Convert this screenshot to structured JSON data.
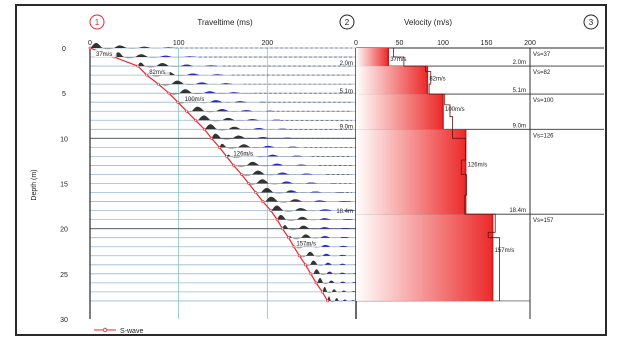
{
  "panel_markers": [
    "1",
    "2",
    "3"
  ],
  "legend": {
    "label": "S-wave",
    "color": "#e8262a"
  },
  "colors": {
    "frame": "#2a2a2a",
    "grid": "#9db7d8",
    "vgrid": "#7fc4c4",
    "trace_blue": "#2a2ad6",
    "trace_black": "#111111",
    "curve": "#e8262a",
    "velocity_line": "#c81e1e",
    "velocity_fill": "#ec2a2a"
  },
  "chart_data": [
    {
      "type": "scatter",
      "title": "Traveltime (ms)",
      "xlabel": "",
      "ylabel": "Depth (m)",
      "xlim": [
        0,
        300
      ],
      "ylim": [
        0,
        30
      ],
      "x_ticks": [
        "0",
        "100",
        "200"
      ],
      "y_ticks": [
        "0",
        "5",
        "10",
        "15",
        "20",
        "25",
        "30"
      ],
      "trace_depths": [
        0,
        1,
        2,
        3,
        4,
        5,
        6,
        7,
        8,
        9,
        10,
        11,
        12,
        13,
        14,
        15,
        16,
        17,
        18,
        19,
        20,
        21,
        22,
        23,
        24,
        25,
        26,
        27,
        28
      ],
      "series": [
        {
          "name": "S-wave",
          "points": [
            [
              0,
              0
            ],
            [
              27,
              1
            ],
            [
              54,
              2
            ],
            [
              64,
              3
            ],
            [
              77,
              4
            ],
            [
              89,
              5
            ],
            [
              99,
              6
            ],
            [
              109,
              7
            ],
            [
              119,
              8
            ],
            [
              129,
              9
            ],
            [
              137,
              10
            ],
            [
              146,
              11
            ],
            [
              154,
              12
            ],
            [
              162,
              13
            ],
            [
              171,
              14
            ],
            [
              179,
              15
            ],
            [
              187,
              16
            ],
            [
              195,
              17
            ],
            [
              204,
              18
            ],
            [
              211,
              19
            ],
            [
              217,
              20
            ],
            [
              224,
              21
            ],
            [
              230,
              22
            ],
            [
              236,
              23
            ],
            [
              243,
              24
            ],
            [
              249,
              25
            ],
            [
              255,
              26
            ],
            [
              262,
              27
            ],
            [
              268,
              28
            ]
          ]
        }
      ],
      "annotations": [
        {
          "text": "37m/s",
          "x": 0,
          "y": 1
        },
        {
          "text": "82m/s",
          "x": 60,
          "y": 3
        },
        {
          "text": "100m/s",
          "x": 100,
          "y": 6
        },
        {
          "text": "126m/s",
          "x": 155,
          "y": 12
        },
        {
          "text": "157m/s",
          "x": 226,
          "y": 22
        },
        {
          "text": "2.0m",
          "x": 300,
          "y": 2
        },
        {
          "text": "5.1m",
          "x": 300,
          "y": 5.1
        },
        {
          "text": "9.0m",
          "x": 300,
          "y": 9
        },
        {
          "text": "18.4m",
          "x": 300,
          "y": 18.4
        }
      ]
    },
    {
      "type": "line",
      "title": "Velocity (m/s)",
      "xlabel": "",
      "ylabel": "",
      "xlim": [
        0,
        200
      ],
      "ylim": [
        0,
        30
      ],
      "x_ticks": [
        "0",
        "50",
        "100",
        "150",
        "200"
      ],
      "layers": [
        {
          "top": 0,
          "bottom": 2.0,
          "velocity": 37,
          "label": "37m/s",
          "boundary_label": "2.0m",
          "vs_label": "Vs=37"
        },
        {
          "top": 2.0,
          "bottom": 5.1,
          "velocity": 82,
          "label": "82m/s",
          "boundary_label": "5.1m",
          "vs_label": "Vs=82"
        },
        {
          "top": 5.1,
          "bottom": 9.0,
          "velocity": 100,
          "label": "100m/s",
          "boundary_label": "9.0m",
          "vs_label": "Vs=100"
        },
        {
          "top": 9.0,
          "bottom": 18.4,
          "velocity": 126,
          "label": "126m/s",
          "boundary_label": "18.4m",
          "vs_label": "Vs=126"
        },
        {
          "top": 18.4,
          "bottom": 28,
          "velocity": 157,
          "label": "157m/s",
          "boundary_label": "",
          "vs_label": "Vs=157"
        }
      ],
      "interval_velocity": [
        [
          43,
          0
        ],
        [
          43,
          1
        ],
        [
          55,
          1
        ],
        [
          55,
          2
        ],
        [
          80,
          2
        ],
        [
          80,
          2.6
        ],
        [
          86,
          2.6
        ],
        [
          86,
          4
        ],
        [
          84,
          4
        ],
        [
          84,
          5.1
        ],
        [
          102,
          5.1
        ],
        [
          102,
          6.3
        ],
        [
          108,
          6.3
        ],
        [
          108,
          7.6
        ],
        [
          111,
          7.6
        ],
        [
          111,
          9
        ],
        [
          111,
          9
        ],
        [
          111,
          10
        ],
        [
          126,
          10
        ],
        [
          126,
          12.4
        ],
        [
          121,
          12.4
        ],
        [
          121,
          14
        ],
        [
          127,
          14
        ],
        [
          127,
          16.3
        ],
        [
          125,
          16.3
        ],
        [
          125,
          18.4
        ],
        [
          160,
          18.4
        ],
        [
          160,
          20.4
        ],
        [
          152,
          20.4
        ],
        [
          152,
          21
        ],
        [
          165,
          21
        ],
        [
          165,
          28
        ]
      ]
    }
  ]
}
